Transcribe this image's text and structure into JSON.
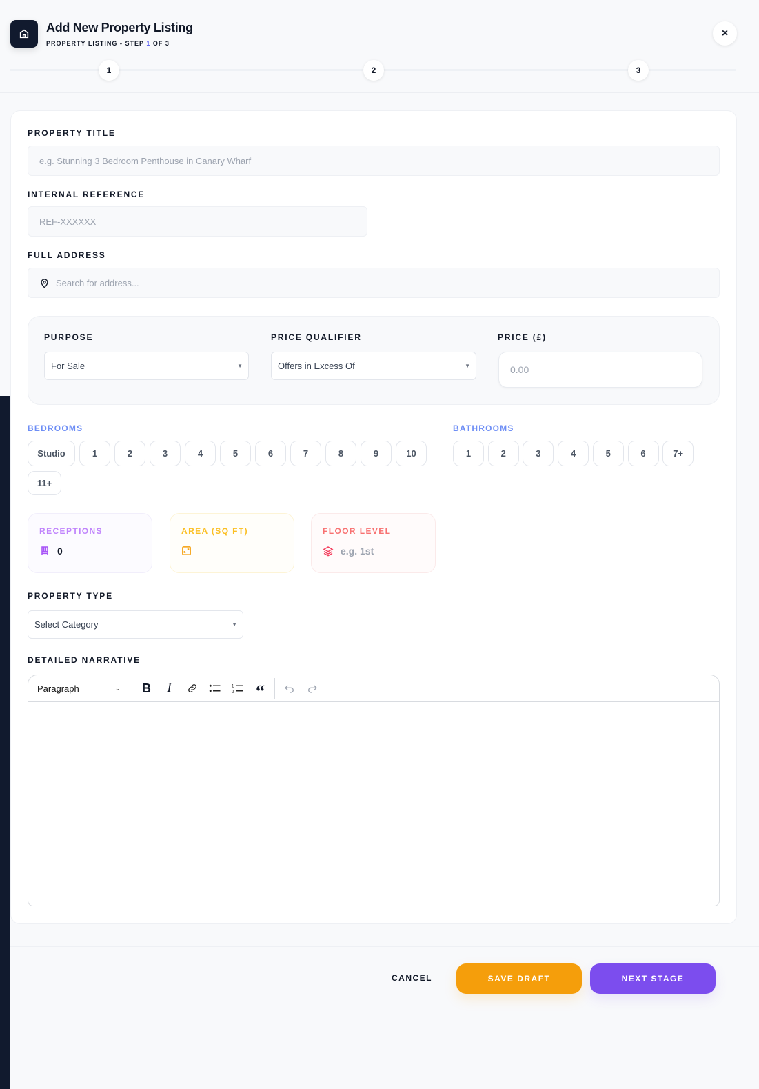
{
  "header": {
    "title": "Add New Property Listing",
    "subtitle_prefix": "PROPERTY LISTING • STEP ",
    "subtitle_step": "1",
    "subtitle_suffix": " OF 3",
    "close_icon": "×",
    "steps": [
      "1",
      "2",
      "3"
    ],
    "current_step": 1
  },
  "form": {
    "property_title": {
      "label": "PROPERTY TITLE",
      "placeholder": "e.g. Stunning 3 Bedroom Penthouse in Canary Wharf"
    },
    "internal_reference": {
      "label": "INTERNAL REFERENCE",
      "placeholder": "REF-XXXXXX"
    },
    "full_address": {
      "label": "FULL ADDRESS",
      "placeholder": "Search for address..."
    },
    "purpose": {
      "label": "PURPOSE",
      "value": "For Sale"
    },
    "price_qualifier": {
      "label": "PRICE QUALIFIER",
      "value": "Offers in Excess Of"
    },
    "price": {
      "label": "PRICE (£)",
      "placeholder": "0.00"
    },
    "bedrooms": {
      "label": "BEDROOMS",
      "options": [
        "Studio",
        "1",
        "2",
        "3",
        "4",
        "5",
        "6",
        "7",
        "8",
        "9",
        "10",
        "11+"
      ]
    },
    "bathrooms": {
      "label": "BATHROOMS",
      "options": [
        "1",
        "2",
        "3",
        "4",
        "5",
        "6",
        "7+"
      ]
    },
    "receptions": {
      "label": "RECEPTIONS",
      "value": "0",
      "color": "#c084fc"
    },
    "area": {
      "label": "AREA (SQ FT)",
      "value": "",
      "color": "#fbbf24"
    },
    "floor_level": {
      "label": "FLOOR LEVEL",
      "placeholder": "e.g. 1st",
      "color": "#f87171"
    },
    "property_type": {
      "label": "PROPERTY TYPE",
      "value": "Select Category"
    },
    "narrative": {
      "label": "DETAILED NARRATIVE",
      "block_format": "Paragraph"
    }
  },
  "footer": {
    "cancel": "CANCEL",
    "save_draft": "SAVE DRAFT",
    "next_stage": "NEXT STAGE",
    "save_color": "#f59e0b",
    "next_color": "#7c4dee"
  }
}
